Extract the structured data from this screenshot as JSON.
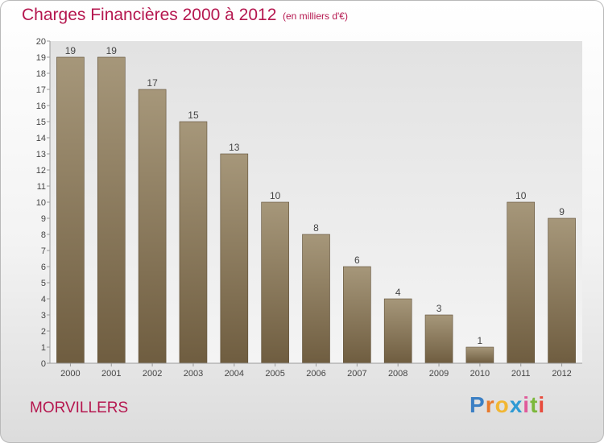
{
  "header": {
    "title": "Charges Financières 2000 à 2012",
    "subtitle": "(en milliers d'€)"
  },
  "footer": {
    "commune": "MORVILLERS",
    "logo_letters": [
      "P",
      "r",
      "o",
      "x",
      "i",
      "t",
      "i"
    ]
  },
  "colors": {
    "title": "#b5174f",
    "bar_top": "#a6977a",
    "bar_bottom": "#6f5d40",
    "logo": [
      "#3b7fc4",
      "#e8792b",
      "#f2b632",
      "#2e9ad4",
      "#e05a9a",
      "#7cb83c",
      "#e84b3c"
    ]
  },
  "chart_data": {
    "type": "bar",
    "title": "Charges Financières 2000 à 2012",
    "subtitle": "(en milliers d'€)",
    "categories": [
      "2000",
      "2001",
      "2002",
      "2003",
      "2004",
      "2005",
      "2006",
      "2007",
      "2008",
      "2009",
      "2010",
      "2011",
      "2012"
    ],
    "values": [
      19,
      19,
      17,
      15,
      13,
      10,
      8,
      6,
      4,
      3,
      1,
      10,
      9
    ],
    "data_labels": [
      "19",
      "19",
      "17",
      "15",
      "13",
      "10",
      "8",
      "6",
      "4",
      "3",
      "1",
      "10",
      "9"
    ],
    "y_ticks": [
      "0",
      "1",
      "2",
      "3",
      "4",
      "5",
      "6",
      "7",
      "8",
      "9",
      "10",
      "11",
      "12",
      "13",
      "14",
      "15",
      "16",
      "17",
      "18",
      "19",
      "20"
    ],
    "ylim": [
      0,
      20
    ],
    "grid": false,
    "legend": "none"
  }
}
